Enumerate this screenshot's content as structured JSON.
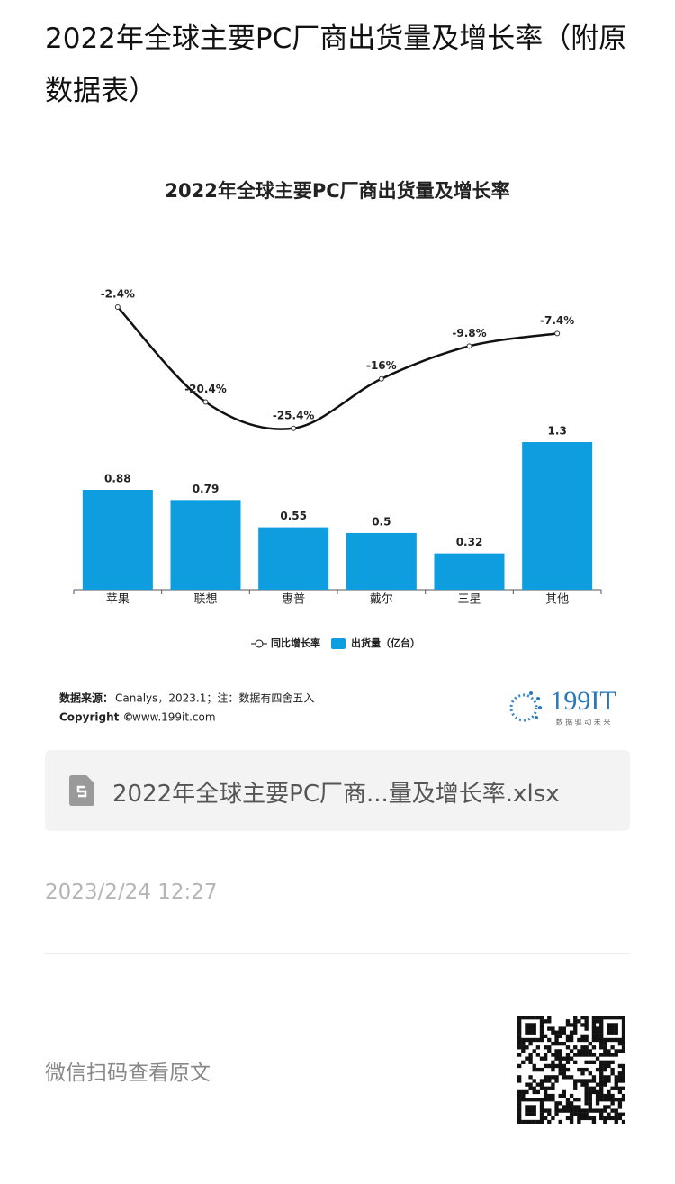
{
  "title": "2022年全球主要PC厂商出货量及增长率（附原数据表）",
  "chart_data": {
    "type": "combo",
    "title": "2022年全球主要PC厂商出货量及增长率",
    "categories": [
      "苹果",
      "联想",
      "惠普",
      "戴尔",
      "三星",
      "其他"
    ],
    "series": [
      {
        "name": "同比增长率",
        "type": "line",
        "axis": "y2",
        "color": "#111111",
        "values": [
          -2.4,
          -20.4,
          -25.4,
          -16,
          -9.8,
          -7.4
        ],
        "value_labels": [
          "-2.4%",
          "-20.4%",
          "-25.4%",
          "-16%",
          "-9.8%",
          "-7.4%"
        ]
      },
      {
        "name": "出货量（亿台）",
        "type": "bar",
        "color": "#0e9ee0",
        "values": [
          0.88,
          0.79,
          0.55,
          0.5,
          0.32,
          1.3
        ]
      }
    ],
    "ylim": [
      0,
      2.6
    ],
    "y2lim": [
      -56,
      0
    ],
    "legend": "bottom",
    "source_label": "数据来源：",
    "source": "Canalys，2023.1；注：数据有四舍五入",
    "copyright_label": "Copyright ©",
    "copyright_site": "www.199it.com",
    "logo": "199IT",
    "logo_slogan": "数 据 驱 动 未 来"
  },
  "attachment": {
    "file_name": "2022年全球主要PC厂商...量及增长率.xlsx"
  },
  "date": "2023/2/24 12:27",
  "qr_hint": "微信扫码查看原文"
}
